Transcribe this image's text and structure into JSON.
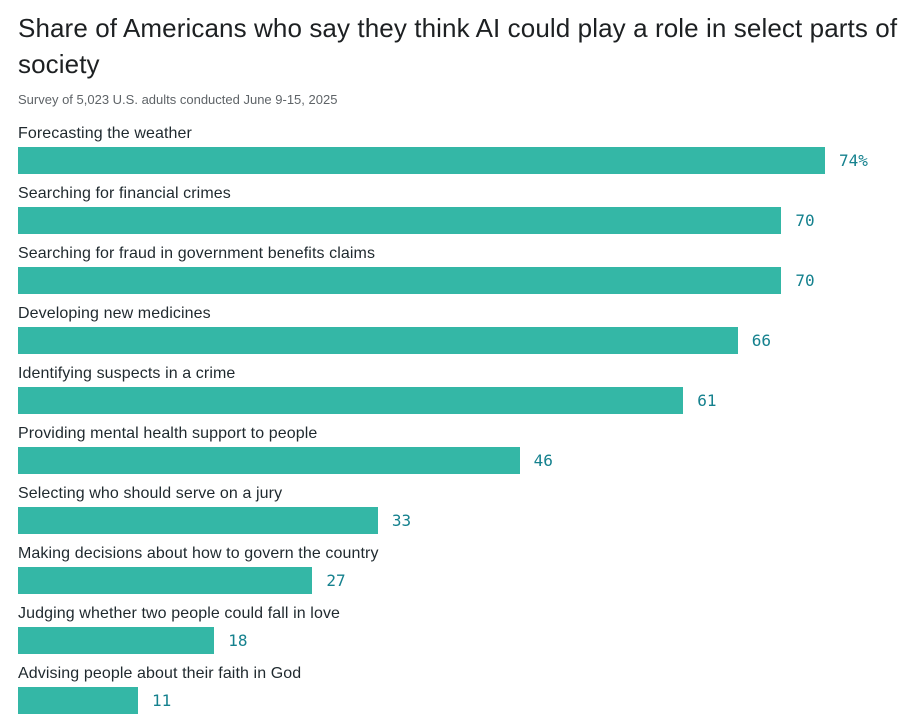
{
  "header": {
    "title": "Share of Americans who say they think AI could play a role in select parts of society",
    "subtitle": "Survey of 5,023 U.S. adults conducted June 9-15, 2025"
  },
  "chart_data": {
    "type": "bar",
    "orientation": "horizontal",
    "title": "Share of Americans who say they think AI could play a role in select parts of society",
    "subtitle": "Survey of 5,023 U.S. adults conducted June 9-15, 2025",
    "categories": [
      "Forecasting the weather",
      "Searching for financial crimes",
      "Searching for fraud in government benefits claims",
      "Developing new medicines",
      "Identifying suspects in a crime",
      "Providing mental health support to people",
      "Selecting who should serve on a jury",
      "Making decisions about how to govern the country",
      "Judging whether two people could fall in love",
      "Advising people about their faith in God"
    ],
    "values": [
      74,
      70,
      70,
      66,
      61,
      46,
      33,
      27,
      18,
      11
    ],
    "value_labels": [
      "74%",
      "70",
      "70",
      "66",
      "61",
      "46",
      "33",
      "27",
      "18",
      "11"
    ],
    "xlim": [
      0,
      74
    ],
    "unit": "percent",
    "grid": false,
    "legend": null,
    "bar_color": "#34b7a6",
    "value_label_color": "#15818e"
  }
}
